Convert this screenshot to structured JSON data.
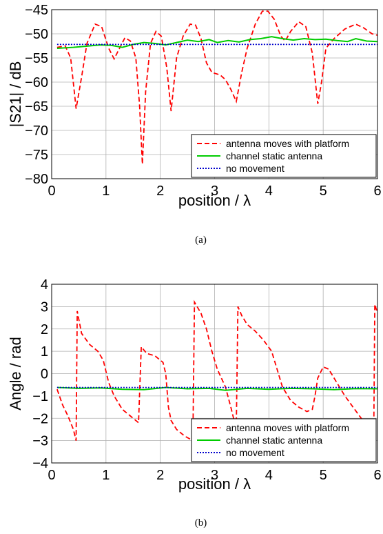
{
  "chart_data": [
    {
      "type": "line",
      "subfigure_label": "(a)",
      "xlabel": "position / λ",
      "ylabel": "|S21| / dB",
      "xlim": [
        0,
        6
      ],
      "ylim": [
        -80,
        -45
      ],
      "x_ticks": [
        "0",
        "1",
        "2",
        "3",
        "4",
        "5",
        "6"
      ],
      "y_ticks": [
        "−45",
        "−50",
        "−55",
        "−60",
        "−65",
        "−70",
        "−75",
        "−80"
      ],
      "grid": true,
      "legend_position": "bottom-right",
      "series": [
        {
          "name": "antenna moves with platform",
          "color": "#ff0000",
          "style": "dashed",
          "points": [
            [
              0.1,
              -52.8
            ],
            [
              0.25,
              -52.5
            ],
            [
              0.35,
              -55
            ],
            [
              0.45,
              -65.5
            ],
            [
              0.55,
              -59
            ],
            [
              0.65,
              -52
            ],
            [
              0.8,
              -48
            ],
            [
              0.92,
              -48.5
            ],
            [
              1.05,
              -53
            ],
            [
              1.15,
              -55.2
            ],
            [
              1.25,
              -53
            ],
            [
              1.35,
              -50.8
            ],
            [
              1.45,
              -51.5
            ],
            [
              1.55,
              -55
            ],
            [
              1.62,
              -65
            ],
            [
              1.67,
              -77
            ],
            [
              1.73,
              -62
            ],
            [
              1.82,
              -52
            ],
            [
              1.92,
              -49.5
            ],
            [
              2.02,
              -50.5
            ],
            [
              2.12,
              -57
            ],
            [
              2.2,
              -66
            ],
            [
              2.3,
              -55
            ],
            [
              2.42,
              -50.5
            ],
            [
              2.55,
              -48
            ],
            [
              2.65,
              -48.2
            ],
            [
              2.75,
              -51
            ],
            [
              2.85,
              -56
            ],
            [
              2.95,
              -58
            ],
            [
              3.1,
              -58.5
            ],
            [
              3.2,
              -59.5
            ],
            [
              3.3,
              -61.5
            ],
            [
              3.4,
              -64
            ],
            [
              3.5,
              -58
            ],
            [
              3.6,
              -53
            ],
            [
              3.75,
              -48
            ],
            [
              3.88,
              -45.3
            ],
            [
              3.98,
              -45.3
            ],
            [
              4.1,
              -47
            ],
            [
              4.22,
              -50.5
            ],
            [
              4.3,
              -51.5
            ],
            [
              4.4,
              -49.5
            ],
            [
              4.55,
              -47.5
            ],
            [
              4.68,
              -48.5
            ],
            [
              4.8,
              -54
            ],
            [
              4.9,
              -64.5
            ],
            [
              4.97,
              -60
            ],
            [
              5.05,
              -53
            ],
            [
              5.2,
              -51
            ],
            [
              5.4,
              -49
            ],
            [
              5.6,
              -48
            ],
            [
              5.75,
              -48.8
            ],
            [
              5.9,
              -50
            ],
            [
              6,
              -50.3
            ]
          ]
        },
        {
          "name": "channel static antenna",
          "color": "#00cc00",
          "style": "solid",
          "points": [
            [
              0.1,
              -53
            ],
            [
              0.4,
              -52.8
            ],
            [
              0.7,
              -52.5
            ],
            [
              0.9,
              -52.3
            ],
            [
              1.1,
              -52.4
            ],
            [
              1.3,
              -52.8
            ],
            [
              1.5,
              -52.2
            ],
            [
              1.7,
              -51.8
            ],
            [
              1.9,
              -52
            ],
            [
              2.1,
              -52.3
            ],
            [
              2.3,
              -51.8
            ],
            [
              2.5,
              -51.3
            ],
            [
              2.7,
              -51.6
            ],
            [
              2.9,
              -51.2
            ],
            [
              3.05,
              -51.8
            ],
            [
              3.25,
              -51.4
            ],
            [
              3.45,
              -51.7
            ],
            [
              3.65,
              -51.2
            ],
            [
              3.85,
              -51
            ],
            [
              4.05,
              -50.6
            ],
            [
              4.25,
              -51
            ],
            [
              4.45,
              -51.3
            ],
            [
              4.65,
              -51
            ],
            [
              4.85,
              -51.2
            ],
            [
              5.05,
              -51.1
            ],
            [
              5.25,
              -51.4
            ],
            [
              5.45,
              -51.6
            ],
            [
              5.6,
              -51
            ],
            [
              5.8,
              -51.5
            ],
            [
              6,
              -51.6
            ]
          ]
        },
        {
          "name": "no movement",
          "color": "#0000cc",
          "style": "dotted",
          "points": [
            [
              0.1,
              -52.2
            ],
            [
              6,
              -52.2
            ]
          ]
        }
      ]
    },
    {
      "type": "line",
      "subfigure_label": "(b)",
      "xlabel": "position / λ",
      "ylabel": "Angle / rad",
      "xlim": [
        0,
        6
      ],
      "ylim": [
        -4,
        4
      ],
      "x_ticks": [
        "0",
        "1",
        "2",
        "3",
        "4",
        "5",
        "6"
      ],
      "y_ticks": [
        "4",
        "3",
        "2",
        "1",
        "0",
        "−1",
        "−2",
        "−3",
        "−4"
      ],
      "grid": true,
      "legend_position": "bottom-right",
      "series": [
        {
          "name": "antenna moves with platform",
          "color": "#ff0000",
          "style": "dashed",
          "points": [
            [
              0.1,
              -0.7
            ],
            [
              0.2,
              -1.4
            ],
            [
              0.3,
              -1.9
            ],
            [
              0.4,
              -2.5
            ],
            [
              0.45,
              -3.0
            ],
            [
              0.47,
              2.8
            ],
            [
              0.55,
              1.8
            ],
            [
              0.7,
              1.3
            ],
            [
              0.85,
              1.0
            ],
            [
              0.95,
              0.6
            ],
            [
              1.05,
              -0.4
            ],
            [
              1.15,
              -1.0
            ],
            [
              1.3,
              -1.6
            ],
            [
              1.45,
              -1.9
            ],
            [
              1.6,
              -2.2
            ],
            [
              1.65,
              1.2
            ],
            [
              1.75,
              0.9
            ],
            [
              1.9,
              0.8
            ],
            [
              2.05,
              0.5
            ],
            [
              2.1,
              0.0
            ],
            [
              2.15,
              -1.5
            ],
            [
              2.2,
              -2.1
            ],
            [
              2.3,
              -2.5
            ],
            [
              2.45,
              -2.8
            ],
            [
              2.6,
              -3.0
            ],
            [
              2.63,
              3.2
            ],
            [
              2.75,
              2.7
            ],
            [
              2.85,
              2.0
            ],
            [
              2.95,
              1.0
            ],
            [
              3.05,
              0.2
            ],
            [
              3.2,
              -0.6
            ],
            [
              3.3,
              -1.5
            ],
            [
              3.4,
              -2.5
            ],
            [
              3.43,
              3.0
            ],
            [
              3.5,
              2.6
            ],
            [
              3.6,
              2.2
            ],
            [
              3.75,
              1.9
            ],
            [
              3.9,
              1.5
            ],
            [
              4.05,
              1.0
            ],
            [
              4.15,
              0.2
            ],
            [
              4.25,
              -0.6
            ],
            [
              4.4,
              -1.2
            ],
            [
              4.55,
              -1.5
            ],
            [
              4.7,
              -1.7
            ],
            [
              4.8,
              -1.6
            ],
            [
              4.85,
              -1.0
            ],
            [
              4.9,
              -0.2
            ],
            [
              5.0,
              0.3
            ],
            [
              5.1,
              0.2
            ],
            [
              5.25,
              -0.4
            ],
            [
              5.4,
              -1.0
            ],
            [
              5.55,
              -1.5
            ],
            [
              5.7,
              -2.0
            ],
            [
              5.85,
              -2.6
            ],
            [
              5.93,
              -3.0
            ],
            [
              5.95,
              3.1
            ],
            [
              6,
              2.7
            ]
          ]
        },
        {
          "name": "channel static antenna",
          "color": "#00cc00",
          "style": "solid",
          "points": [
            [
              0.1,
              -0.62
            ],
            [
              0.5,
              -0.66
            ],
            [
              0.9,
              -0.64
            ],
            [
              1.3,
              -0.7
            ],
            [
              1.7,
              -0.72
            ],
            [
              2.1,
              -0.62
            ],
            [
              2.5,
              -0.68
            ],
            [
              2.9,
              -0.66
            ],
            [
              3.2,
              -0.75
            ],
            [
              3.6,
              -0.66
            ],
            [
              4.0,
              -0.7
            ],
            [
              4.4,
              -0.66
            ],
            [
              4.8,
              -0.68
            ],
            [
              5.2,
              -0.72
            ],
            [
              5.6,
              -0.67
            ],
            [
              6.0,
              -0.68
            ]
          ]
        },
        {
          "name": "no movement",
          "color": "#0000cc",
          "style": "dotted",
          "points": [
            [
              0.1,
              -0.62
            ],
            [
              6,
              -0.62
            ]
          ]
        }
      ]
    }
  ]
}
